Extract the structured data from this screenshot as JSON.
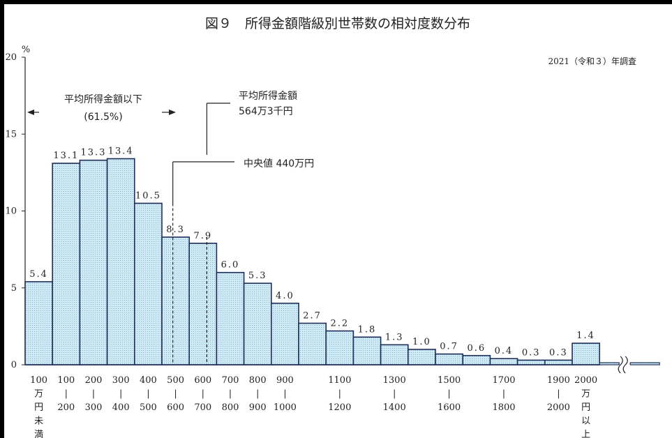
{
  "chart_data": {
    "type": "bar",
    "title": "図９　所得金額階級別世帯数の相対度数分布",
    "survey_note": "2021（令和３）年調査",
    "y_unit": "%",
    "ylim": [
      0,
      20
    ],
    "yticks": [
      "0",
      "5",
      "10",
      "15",
      "20"
    ],
    "grid": false,
    "categories": [
      {
        "values_label": "5.4",
        "lines": [
          "100",
          "万",
          "円",
          "未",
          "満"
        ]
      },
      {
        "values_label": "13.1",
        "lines": [
          "100",
          "|",
          "200"
        ]
      },
      {
        "values_label": "13.3",
        "lines": [
          "200",
          "|",
          "300"
        ]
      },
      {
        "values_label": "13.4",
        "lines": [
          "300",
          "|",
          "400"
        ]
      },
      {
        "values_label": "10.5",
        "lines": [
          "400",
          "|",
          "500"
        ]
      },
      {
        "values_label": "8.3",
        "lines": [
          "500",
          "|",
          "600"
        ]
      },
      {
        "values_label": "7.9",
        "lines": [
          "600",
          "|",
          "700"
        ]
      },
      {
        "values_label": "6.0",
        "lines": [
          "700",
          "|",
          "800"
        ]
      },
      {
        "values_label": "5.3",
        "lines": [
          "800",
          "|",
          "900"
        ]
      },
      {
        "values_label": "4.0",
        "lines": [
          "900",
          "|",
          "1000"
        ]
      },
      {
        "values_label": "2.7",
        "lines": []
      },
      {
        "values_label": "2.2",
        "lines": [
          "1100",
          "|",
          "1200"
        ]
      },
      {
        "values_label": "1.8",
        "lines": []
      },
      {
        "values_label": "1.3",
        "lines": [
          "1300",
          "|",
          "1400"
        ]
      },
      {
        "values_label": "1.0",
        "lines": []
      },
      {
        "values_label": "0.7",
        "lines": [
          "1500",
          "|",
          "1600"
        ]
      },
      {
        "values_label": "0.6",
        "lines": []
      },
      {
        "values_label": "0.4",
        "lines": [
          "1700",
          "|",
          "1800"
        ]
      },
      {
        "values_label": "0.3",
        "lines": []
      },
      {
        "values_label": "0.3",
        "lines": [
          "1900",
          "|",
          "2000"
        ]
      },
      {
        "values_label": "1.4",
        "lines": [
          "2000",
          "万",
          "円",
          "以",
          "上"
        ]
      }
    ],
    "values": [
      5.4,
      13.1,
      13.3,
      13.4,
      10.5,
      8.3,
      7.9,
      6.0,
      5.3,
      4.0,
      2.7,
      2.2,
      1.8,
      1.3,
      1.0,
      0.7,
      0.6,
      0.4,
      0.3,
      0.3,
      1.4
    ],
    "bar_colors": {
      "fill": "#cfeaf5",
      "stroke": "#1f2f5a",
      "dot": "#6aa7c7"
    },
    "annotations": {
      "below_mean_label": "平均所得金額以下",
      "below_mean_pct": "(61.5%)",
      "mean_label": "平均所得金額",
      "mean_value_label": "564万3千円",
      "mean_value": 564.3,
      "median_label": "中央値 440万円",
      "median_value": 440
    }
  }
}
